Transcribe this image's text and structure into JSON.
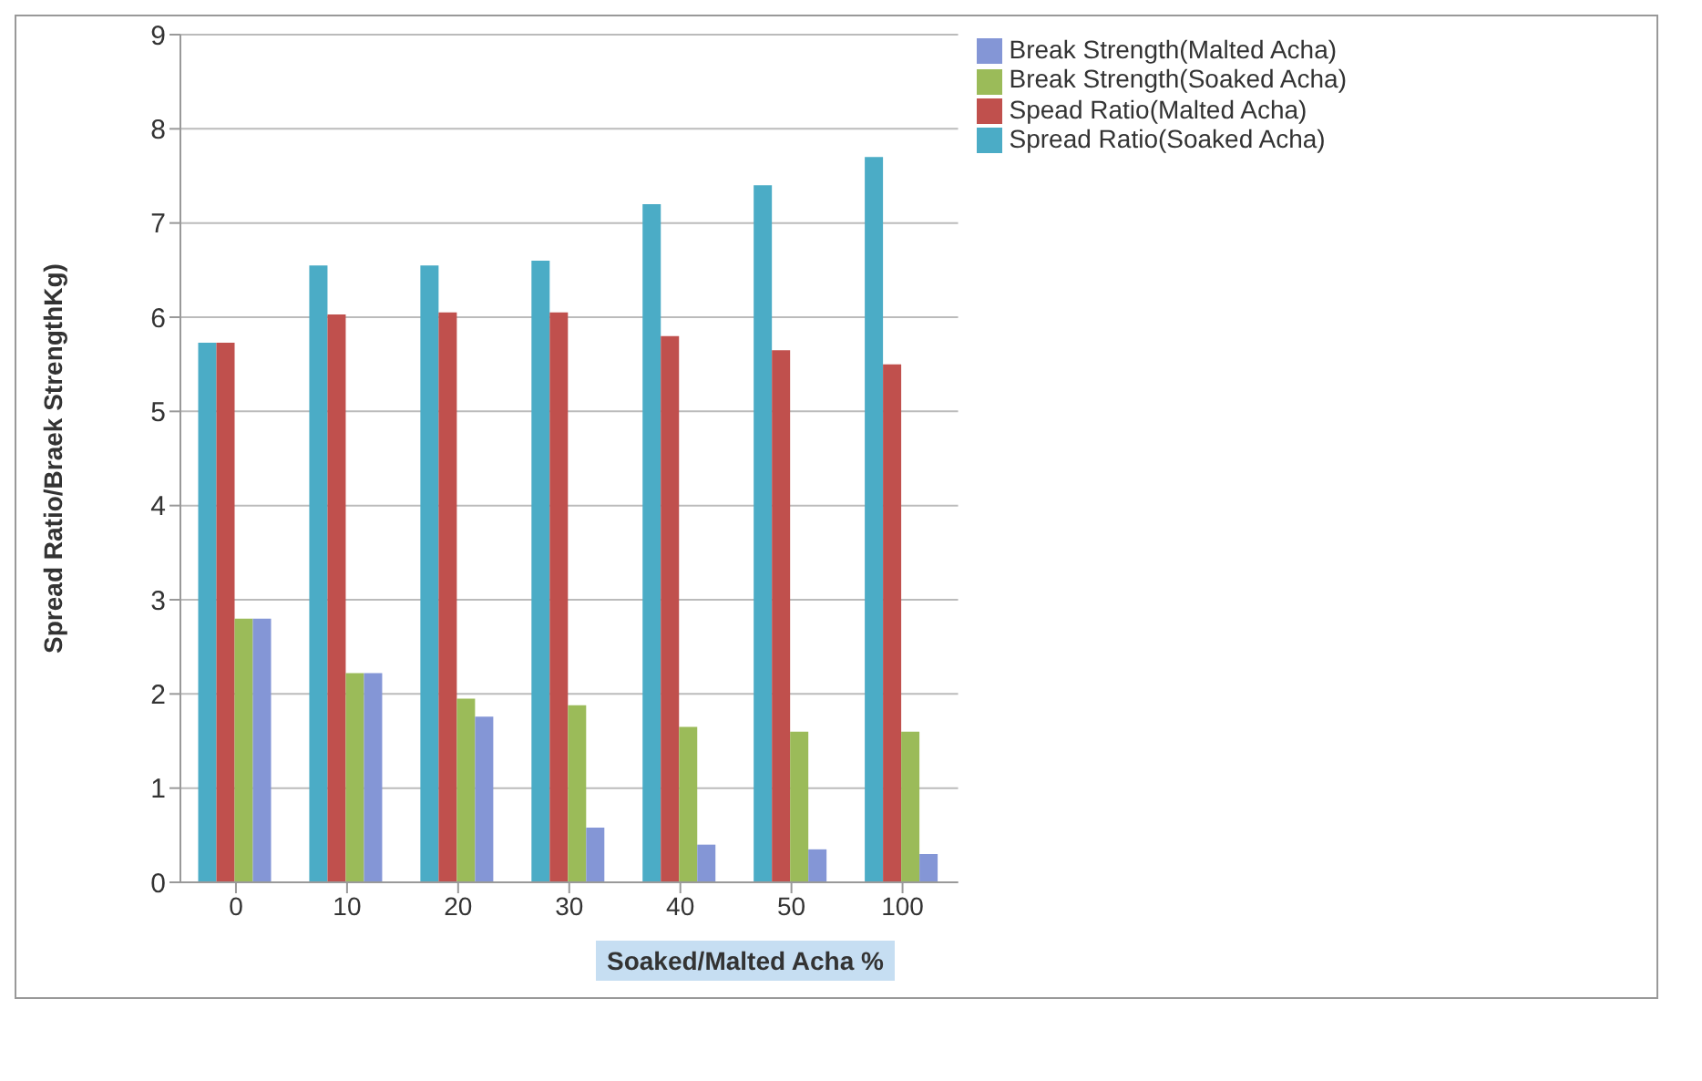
{
  "chart_data": {
    "type": "bar",
    "xlabel": "Soaked/Malted Acha %",
    "ylabel": "Spread Ratio/Braek StrengthKg)",
    "categories": [
      "0",
      "10",
      "20",
      "30",
      "40",
      "50",
      "100"
    ],
    "series": [
      {
        "name": "Spread Ratio(Soaked Acha)",
        "color": "#4bacc6",
        "values": [
          5.73,
          6.55,
          6.55,
          6.6,
          7.2,
          7.4,
          7.7
        ]
      },
      {
        "name": "Spead Ratio(Malted Acha)",
        "color": "#c0504d",
        "values": [
          5.73,
          6.03,
          6.05,
          6.05,
          5.8,
          5.65,
          5.5
        ]
      },
      {
        "name": "Break Strength(Soaked Acha)",
        "color": "#9bbb59",
        "values": [
          2.8,
          2.22,
          1.95,
          1.88,
          1.65,
          1.6,
          1.6
        ]
      },
      {
        "name": "Break Strength(Malted Acha)",
        "color": "#8496d6",
        "values": [
          2.8,
          2.22,
          1.76,
          0.58,
          0.4,
          0.35,
          0.3
        ]
      }
    ],
    "ylim": [
      0,
      9
    ],
    "yticks": [
      0,
      1,
      2,
      3,
      4,
      5,
      6,
      7,
      8,
      9
    ],
    "grid": "y",
    "legend": "top right"
  }
}
